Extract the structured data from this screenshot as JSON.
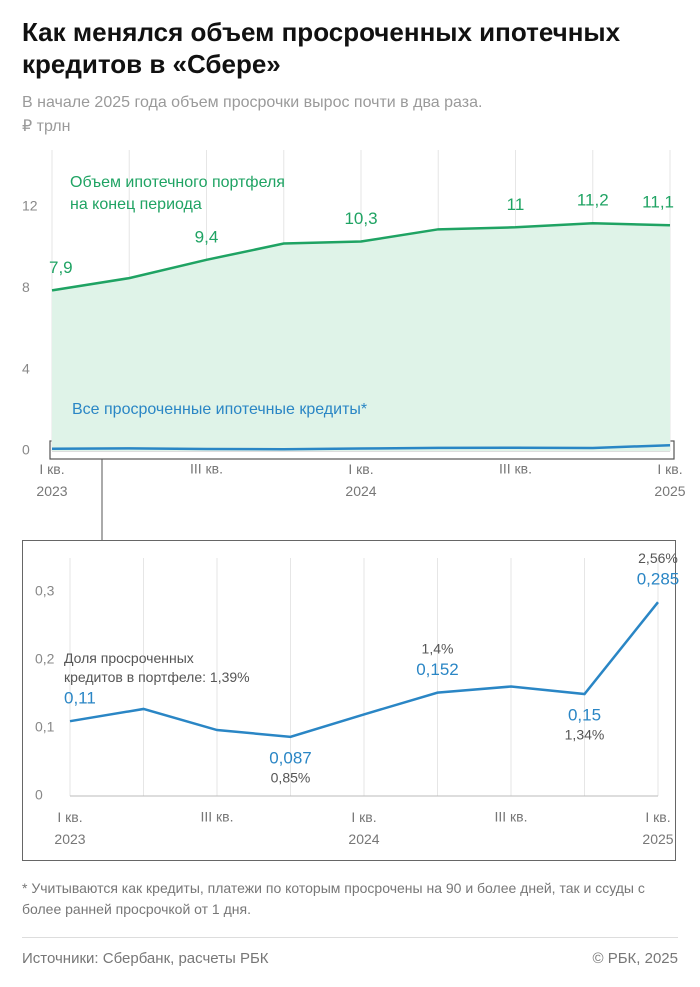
{
  "header": {
    "title": "Как менялся объем просроченных ипотечных кредитов в «Сбере»",
    "subtitle": "В начале 2025 года объем просрочки вырос почти в два раза.",
    "unit": "₽ трлн"
  },
  "chart_data": [
    {
      "type": "area",
      "categories": [
        "I кв.\n2023",
        null,
        "III кв.",
        null,
        "I кв.\n2024",
        null,
        "III кв.",
        null,
        "I кв.\n2025"
      ],
      "ylim": [
        0,
        14.8
      ],
      "yticks": [
        0,
        4,
        8,
        12
      ],
      "series": [
        {
          "name": "Объем ипотечного портфеля\nна конец периода",
          "color": "#1fa363",
          "values": [
            7.9,
            8.5,
            9.4,
            10.2,
            10.3,
            10.9,
            11.0,
            11.2,
            11.1
          ],
          "value_labels": [
            "7,9",
            null,
            "9,4",
            null,
            "10,3",
            null,
            "11",
            "11,2",
            "11,1"
          ]
        },
        {
          "name": "Все просроченные ипотечные кредиты*",
          "color": "#2a86c5",
          "values": [
            0.11,
            0.128,
            0.097,
            0.087,
            0.12,
            0.152,
            0.161,
            0.15,
            0.285
          ]
        }
      ]
    },
    {
      "type": "line",
      "categories": [
        "I кв.\n2023",
        null,
        "III кв.",
        null,
        "I кв.\n2024",
        null,
        "III кв.",
        null,
        "I кв.\n2025"
      ],
      "ylim": [
        0,
        0.35
      ],
      "yticks": [
        0,
        {
          "value": 0.1,
          "label": "0,1"
        },
        {
          "value": 0.2,
          "label": "0,2"
        },
        {
          "value": 0.3,
          "label": "0,3"
        }
      ],
      "series": [
        {
          "name": "Все просроченные ипотечные кредиты*",
          "color": "#2a86c5",
          "values": [
            0.11,
            0.128,
            0.097,
            0.087,
            0.12,
            0.152,
            0.161,
            0.15,
            0.285
          ],
          "value_labels": [
            "0,11",
            null,
            null,
            "0,087",
            null,
            "0,152",
            null,
            "0,15",
            "0,285"
          ]
        }
      ],
      "annotation": "Доля просроченных\nкредитов в портфеле:",
      "share": {
        "values": [
          1.39,
          null,
          null,
          0.85,
          null,
          1.4,
          null,
          1.34,
          2.56
        ],
        "value_labels": [
          "1,39%",
          null,
          null,
          "0,85%",
          null,
          "1,4%",
          null,
          "1,34%",
          "2,56%"
        ]
      }
    }
  ],
  "footnote": "* Учитываются как кредиты, платежи по которым просрочены на 90 и более дней, так и ссуды с более ранней просрочкой от 1 дня.",
  "source": "Источники: Сбербанк, расчеты РБК",
  "copyright": "© РБК, 2025"
}
